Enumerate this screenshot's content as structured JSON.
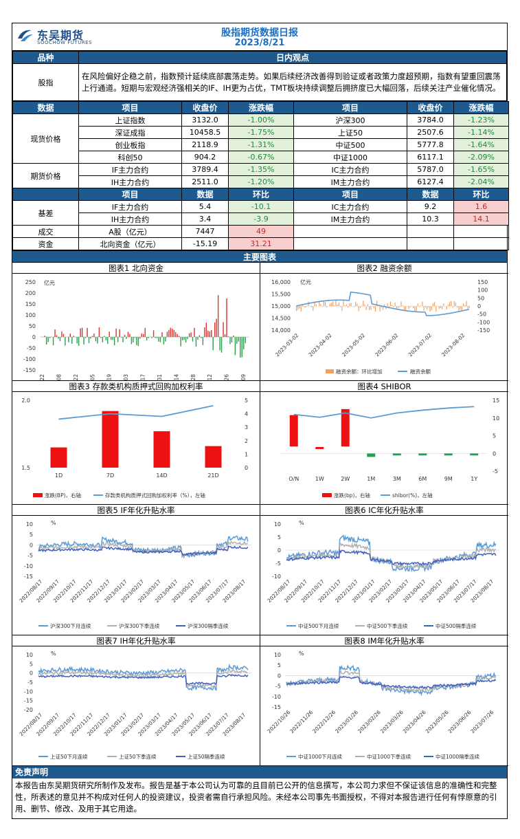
{
  "header": {
    "logo_cn": "东吴期货",
    "logo_en": "SOOCHOW FUTURES",
    "title": "股指期货数据日报",
    "date": "2023/8/21"
  },
  "view": {
    "col1": "品种",
    "col2": "日内观点",
    "variety": "股指",
    "text": "在风险偏好企稳之前，指数预计延续底部震荡走势。如果后续经济改善得到验证或者政策力度超预期，指数有望重回震荡上行通道。短期与宏观经济强相关的IF、IH更为占优，TMT板块持续调整后拥挤度已大幅回落，后续关注产业催化情况。"
  },
  "quotes_header": [
    "数据",
    "项目",
    "收盘价",
    "涨跌幅",
    "项目",
    "收盘价",
    "涨跌幅"
  ],
  "spot_label": "现货价格",
  "futures_label": "期货价格",
  "spot": [
    {
      "n1": "上证指数",
      "p1": "3132.0",
      "c1": "-1.00%",
      "n2": "沪深300",
      "p2": "3784.0",
      "c2": "-1.23%"
    },
    {
      "n1": "深证成指",
      "p1": "10458.5",
      "c1": "-1.75%",
      "n2": "上证50",
      "p2": "2507.6",
      "c2": "-1.14%"
    },
    {
      "n1": "创业板指",
      "p1": "2118.9",
      "c1": "-1.31%",
      "n2": "中证500",
      "p2": "5777.8",
      "c2": "-1.64%"
    },
    {
      "n1": "科创50",
      "p1": "904.2",
      "c1": "-0.67%",
      "n2": "中证1000",
      "p2": "6117.1",
      "c2": "-2.09%"
    }
  ],
  "futures": [
    {
      "n1": "IF主力合约",
      "p1": "3789.4",
      "c1": "-1.35%",
      "n2": "IC主力合约",
      "p2": "5787.0",
      "c2": "-1.65%"
    },
    {
      "n1": "IH主力合约",
      "p1": "2511.0",
      "c1": "-1.20%",
      "n2": "IM主力合约",
      "p2": "6127.4",
      "c2": "-2.04%"
    }
  ],
  "basis_header": [
    "项目",
    "数据",
    "环比",
    "项目",
    "数据",
    "环比"
  ],
  "basis_label": "基差",
  "basis": [
    {
      "n1": "IF主力合约",
      "v1": "5.4",
      "d1": "-10.1",
      "n2": "IC主力合约",
      "v2": "9.2",
      "d2": "1.6"
    },
    {
      "n1": "IH主力合约",
      "v1": "3.4",
      "d1": "-3.9",
      "n2": "IM主力合约",
      "v2": "10.3",
      "d2": "14.1"
    }
  ],
  "turnover": {
    "label": "成交",
    "item": "A股（亿元）",
    "value": "7447",
    "change": "49"
  },
  "capital": {
    "label": "资金",
    "item": "北向资金（亿元）",
    "value": "-15.19",
    "change": "31.21"
  },
  "charts_section": "主要图表",
  "chart_titles": [
    "图表1  北向资金",
    "图表2  融资余额",
    "图表3  存款类机构质押式回购加权利率",
    "图表4  SHIBOR",
    "图表5  IF年化升贴水率",
    "图表6  IC年化升贴水率",
    "图表7  IH年化升贴水率",
    "图表8  IM年化升贴水率"
  ],
  "chart_data": [
    {
      "type": "bar",
      "title": "图表1  北向资金",
      "ylabel": "亿元",
      "ylim": [
        -150,
        250
      ],
      "yticks": [
        "250",
        "200",
        "150",
        "100",
        "50",
        "0",
        "-50",
        "-100",
        "-150"
      ],
      "xticks": [
        "2023-02-22",
        "2023-03-08",
        "2023-03-22",
        "2023-04-05",
        "2023-04-19",
        "2023-05-03",
        "2023-05-17",
        "2023-05-31",
        "2023-06-14",
        "2023-06-28",
        "2023-07-12",
        "2023-07-26",
        "2023-08-09"
      ]
    },
    {
      "type": "line",
      "title": "图表2  融资余额",
      "ylabel": "亿元",
      "ylim": [
        14000,
        16000
      ],
      "yticks": [
        "16,000",
        "15,500",
        "15,000",
        "14,500",
        "14,000"
      ],
      "y2ticks": [
        "150",
        "100",
        "50",
        "0",
        "-50",
        "-100",
        "-150"
      ],
      "xticks": [
        "2023-03-02",
        "2023-04-02",
        "2023-05-02",
        "2023-06-02",
        "2023-07-02",
        "2023-08-02"
      ],
      "legend": [
        "融资余额：环比增加",
        "融资余额"
      ]
    },
    {
      "type": "bar",
      "title": "图表3  存款类机构质押式回购加权利率",
      "categories": [
        "1D",
        "7D",
        "14D",
        "21D"
      ],
      "bars": [
        1.5,
        4.2,
        2.7,
        1.6
      ],
      "line": [
        3.6,
        4.0,
        3.8,
        4.6
      ],
      "yticks": [
        "2.0",
        "1.5"
      ],
      "y2ticks": [
        "5",
        "4",
        "3",
        "2",
        "1",
        "0"
      ],
      "legend": [
        "涨跌(BP)，右轴",
        "存款类机构质押式回购加权利率（%），左轴"
      ]
    },
    {
      "type": "bar",
      "title": "图表4  SHIBOR",
      "categories": [
        "O/N",
        "1W",
        "2W",
        "1M",
        "3M",
        "6M",
        "9M",
        "1Y"
      ],
      "bars": [
        10.8,
        1.8,
        12.5,
        -1.0,
        -0.3,
        -0.5,
        -0.5,
        -0.5
      ],
      "line": [
        11.0,
        10.2,
        11.4,
        10.0,
        11.4,
        12.2,
        12.8,
        13.2
      ],
      "yticks": [
        "15",
        "10",
        "5",
        "0",
        "-5"
      ],
      "legend": [
        "涨跌(bp)，右轴",
        "shibor(%)，左轴"
      ]
    },
    {
      "type": "line",
      "title": "图表5  IF年化升贴水率",
      "ylabel": "%",
      "yticks": [
        "10",
        "5",
        "0",
        "-5",
        "-10",
        "-15"
      ],
      "xticks": [
        "2022/08/17",
        "2022/09/17",
        "2022/10/17",
        "2022/11/17",
        "2022/12/17",
        "2023/01/17",
        "2023/02/17",
        "2023/03/17",
        "2023/04/17",
        "2023/05/17",
        "2023/06/17",
        "2023/07/17",
        "2023/08/17"
      ],
      "legend": [
        "沪深300下月连续",
        "沪深300下季连续",
        "沪深300隔季连续"
      ]
    },
    {
      "type": "line",
      "title": "图表6  IC年化升贴水率",
      "ylabel": "%",
      "yticks": [
        "10",
        "5",
        "0",
        "-5",
        "-10"
      ],
      "xticks": [
        "2022/08/17",
        "2022/09/17",
        "2022/10/17",
        "2022/11/17",
        "2022/12/17",
        "2023/01/17",
        "2023/02/17",
        "2023/03/17",
        "2023/04/17",
        "2023/05/17",
        "2023/06/17",
        "2023/07/17",
        "2023/08/17"
      ],
      "legend": [
        "中证500下月连续",
        "中证500下季连续",
        "中证500隔季连续"
      ]
    },
    {
      "type": "line",
      "title": "图表7  IH年化升贴水率",
      "ylabel": "%",
      "yticks": [
        "10",
        "5",
        "0",
        "-5",
        "-10",
        "-15",
        "-20"
      ],
      "xticks": [
        "2022/08/17",
        "2022/09/17",
        "2022/10/17",
        "2022/11/17",
        "2022/12/17",
        "2023/01/17",
        "2023/02/17",
        "2023/03/17",
        "2023/04/17",
        "2023/05/17",
        "2023/06/17",
        "2023/07/17",
        "2023/08/17"
      ],
      "legend": [
        "上证50下月连续",
        "上证50下季连续",
        "上证50隔季连续"
      ]
    },
    {
      "type": "line",
      "title": "图表8  IM年化升贴水率",
      "ylabel": "%",
      "yticks": [
        "10",
        "5",
        "0",
        "-5",
        "-10",
        "-15"
      ],
      "xticks": [
        "2022/10/26",
        "2022/11/26",
        "2022/12/26",
        "2023/01/26",
        "2023/02/26",
        "2023/03/26",
        "2023/04/26",
        "2023/05/26",
        "2023/06/26",
        "2023/07/26"
      ],
      "legend": [
        "中证1000下月连续",
        "中证1000下季连续",
        "中证1000隔季连续"
      ]
    }
  ],
  "disclaimer_title": "免责声明",
  "disclaimer": "本报告由东吴期货研究所制作及发布。报告是基于本公司认为可靠的且目前已公开的信息撰写，本公司力求但不保证该信息的准确性和完整性，所表述的意见并不构成对任何人的投资建议，投资者需自行承担风险。未经本公司事先书面授权，不得对本报告进行任何有悖原意的引用、删节、修改、及用于其它用途。",
  "colors": {
    "header_bg": "#1f5a8e",
    "title": "#1a6fc4",
    "neg": "#1e8a3a",
    "pos": "#d42020"
  }
}
